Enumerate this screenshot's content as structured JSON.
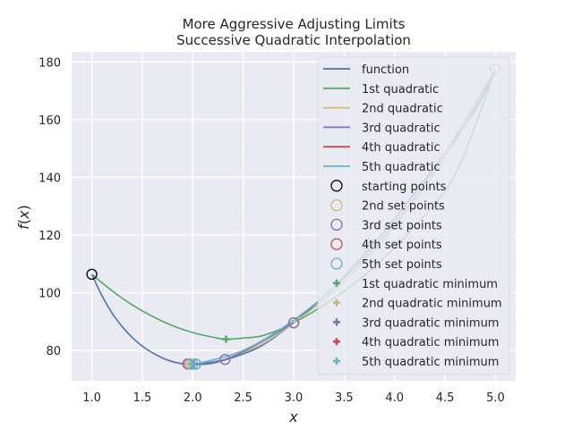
{
  "chart_data": {
    "type": "line",
    "title": "More Aggressive Adjusting Limits\nSuccessive Quadratic Interpolation",
    "xlabel": "x",
    "ylabel": "f(x)",
    "xlim": [
      0.8,
      5.2
    ],
    "ylim": [
      69.5,
      183.5
    ],
    "xticks": [
      1.0,
      1.5,
      2.0,
      2.5,
      3.0,
      3.5,
      4.0,
      4.5,
      5.0
    ],
    "xtick_labels": [
      "1.0",
      "1.5",
      "2.0",
      "2.5",
      "3.0",
      "3.5",
      "4.0",
      "4.5",
      "5.0"
    ],
    "yticks": [
      80,
      100,
      120,
      140,
      160,
      180
    ],
    "ytick_labels": [
      "80",
      "100",
      "120",
      "140",
      "160",
      "180"
    ],
    "grid": true,
    "legend_position": "top-right",
    "series": [
      {
        "name": "function",
        "kind": "line",
        "color": "#4c72b0",
        "points": [
          [
            1.0,
            106.4
          ],
          [
            1.1,
            99.0
          ],
          [
            1.2,
            93.0
          ],
          [
            1.3,
            88.3
          ],
          [
            1.4,
            84.5
          ],
          [
            1.5,
            81.5
          ],
          [
            1.6,
            79.2
          ],
          [
            1.7,
            77.4
          ],
          [
            1.8,
            76.1
          ],
          [
            1.9,
            75.4
          ],
          [
            2.0,
            75.1
          ],
          [
            2.1,
            75.2
          ],
          [
            2.2,
            75.6
          ],
          [
            2.3,
            76.5
          ],
          [
            2.5,
            78.8
          ],
          [
            2.7,
            82.0
          ],
          [
            3.0,
            89.6
          ],
          [
            3.3,
            98.7
          ],
          [
            3.5,
            105.6
          ],
          [
            3.8,
            117.2
          ],
          [
            4.0,
            125.6
          ],
          [
            4.3,
            139.2
          ],
          [
            4.5,
            148.6
          ],
          [
            4.8,
            163.5
          ],
          [
            5.0,
            177.4
          ]
        ]
      },
      {
        "name": "1st quadratic",
        "kind": "line",
        "color": "#55a868",
        "points": [
          [
            1.0,
            106.4
          ],
          [
            1.2,
            100.7
          ],
          [
            1.4,
            95.8
          ],
          [
            1.6,
            91.8
          ],
          [
            1.8,
            88.6
          ],
          [
            2.0,
            86.2
          ],
          [
            2.2,
            84.6
          ],
          [
            2.32,
            83.9
          ],
          [
            2.5,
            84.3
          ],
          [
            2.7,
            85.2
          ],
          [
            3.0,
            89.6
          ],
          [
            3.4,
            98.0
          ],
          [
            3.8,
            109.0
          ],
          [
            4.2,
            123.0
          ],
          [
            4.6,
            141.0
          ],
          [
            5.0,
            177.4
          ]
        ]
      },
      {
        "name": "2nd quadratic",
        "kind": "line",
        "color": "#ccb974",
        "points": [
          [
            2.32,
            76.9
          ],
          [
            2.5,
            79.3
          ],
          [
            2.7,
            82.4
          ],
          [
            3.0,
            89.6
          ],
          [
            3.4,
            100.5
          ],
          [
            3.8,
            114.8
          ],
          [
            4.2,
            132.0
          ],
          [
            4.6,
            152.5
          ],
          [
            5.0,
            177.4
          ]
        ]
      },
      {
        "name": "3rd quadratic",
        "kind": "line",
        "color": "#8172b2",
        "points": [
          [
            1.97,
            75.3
          ],
          [
            2.1,
            75.6
          ],
          [
            2.32,
            76.9
          ],
          [
            2.5,
            79.6
          ],
          [
            2.7,
            83.3
          ],
          [
            3.0,
            89.6
          ]
        ]
      },
      {
        "name": "4th quadratic",
        "kind": "line",
        "color": "#c44e52",
        "points": [
          [
            1.95,
            75.3
          ],
          [
            1.97,
            75.25
          ],
          [
            2.0,
            75.2
          ],
          [
            2.03,
            75.25
          ]
        ]
      },
      {
        "name": "5th quadratic",
        "kind": "line",
        "color": "#64b5cd",
        "points": [
          [
            1.97,
            75.3
          ],
          [
            2.0,
            75.2
          ],
          [
            2.03,
            75.3
          ],
          [
            2.5,
            80.0
          ],
          [
            3.0,
            90.5
          ],
          [
            3.5,
            105.0
          ],
          [
            4.0,
            124.0
          ],
          [
            4.5,
            148.5
          ],
          [
            5.0,
            177.4
          ]
        ]
      },
      {
        "name": "starting points",
        "kind": "markers-circle",
        "color": "#000000",
        "points": [
          [
            1.0,
            106.4
          ],
          [
            3.0,
            89.6
          ],
          [
            5.0,
            177.4
          ]
        ]
      },
      {
        "name": "2nd set points",
        "kind": "markers-circle",
        "color": "#ccb974",
        "points": [
          [
            2.32,
            76.9
          ],
          [
            3.0,
            89.6
          ],
          [
            5.0,
            177.4
          ]
        ]
      },
      {
        "name": "3rd set points",
        "kind": "markers-circle",
        "color": "#8172b2",
        "points": [
          [
            1.97,
            75.3
          ],
          [
            2.32,
            76.9
          ],
          [
            3.0,
            89.6
          ]
        ]
      },
      {
        "name": "4th set points",
        "kind": "markers-circle",
        "color": "#c44e52",
        "points": [
          [
            1.95,
            75.3
          ],
          [
            1.97,
            75.3
          ],
          [
            2.03,
            75.3
          ]
        ]
      },
      {
        "name": "5th set points",
        "kind": "markers-circle",
        "color": "#64b5cd",
        "points": [
          [
            1.97,
            75.3
          ],
          [
            2.0,
            75.2
          ],
          [
            2.03,
            75.3
          ]
        ]
      },
      {
        "name": "1st quadratic minimum",
        "kind": "markers-plus",
        "color": "#55a868",
        "points": [
          [
            2.33,
            83.9
          ]
        ]
      },
      {
        "name": "2nd quadratic minimum",
        "kind": "markers-plus",
        "color": "#ccb974",
        "points": [
          [
            1.96,
            75.3
          ]
        ]
      },
      {
        "name": "3rd quadratic minimum",
        "kind": "markers-plus",
        "color": "#8172b2",
        "points": [
          [
            2.0,
            75.2
          ]
        ]
      },
      {
        "name": "4th quadratic minimum",
        "kind": "markers-plus",
        "color": "#c44e52",
        "points": [
          [
            2.01,
            75.2
          ]
        ]
      },
      {
        "name": "5th quadratic minimum",
        "kind": "markers-plus",
        "color": "#64b5cd",
        "points": [
          [
            2.0,
            75.2
          ]
        ]
      }
    ]
  }
}
